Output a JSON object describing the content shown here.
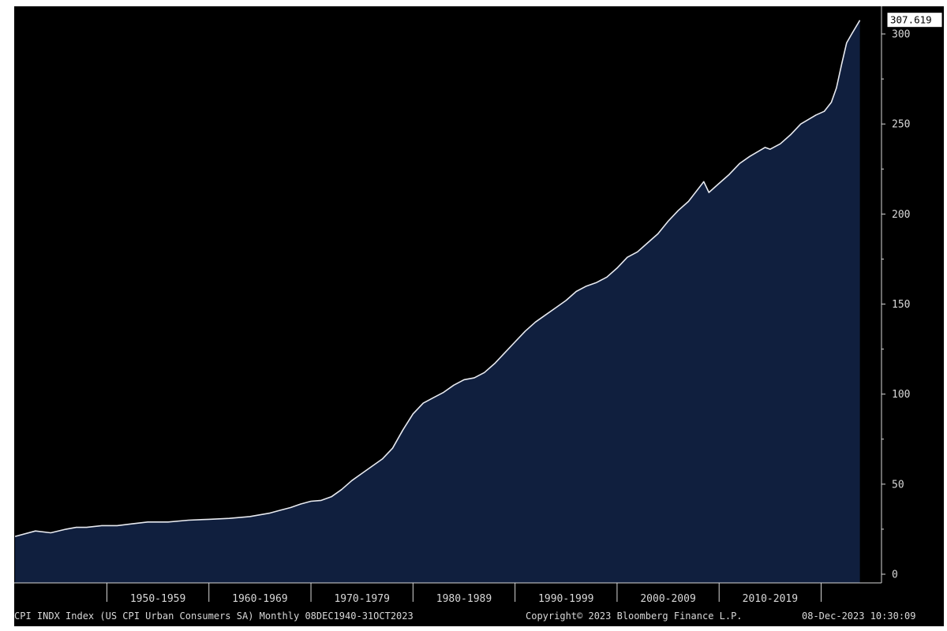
{
  "chart_data": {
    "type": "area",
    "x_range": [
      "1940-12",
      "2023-10"
    ],
    "ylim": [
      0,
      320
    ],
    "y_ticks": [
      0,
      50,
      100,
      150,
      200,
      250,
      300
    ],
    "y_tick_labels": [
      "0",
      "50",
      "100",
      "150",
      "200",
      "250",
      "300"
    ],
    "x_tick_labels": [
      "1950-1959",
      "1960-1969",
      "1970-1979",
      "1980-1989",
      "1990-1999",
      "2000-2009",
      "2010-2019"
    ],
    "last_value_label": "307.619",
    "grid": false,
    "series": [
      {
        "x": [
          1941.0,
          1943.0,
          1944.5,
          1946.0,
          1947.0,
          1948.0,
          1949.5,
          1951.0,
          1952.5,
          1954.0,
          1956.0,
          1958.0,
          1960.0,
          1962.0,
          1964.0,
          1965.0,
          1966.0,
          1967.0,
          1968.0,
          1969.0,
          1970.0,
          1971.0,
          1972.0,
          1973.0,
          1974.0,
          1975.0,
          1976.0,
          1977.0,
          1978.0,
          1979.0,
          1980.0,
          1981.0,
          1982.0,
          1983.0,
          1984.0,
          1985.0,
          1986.0,
          1987.0,
          1988.0,
          1989.0,
          1990.0,
          1991.0,
          1992.0,
          1993.0,
          1994.0,
          1995.0,
          1996.0,
          1997.0,
          1998.0,
          1999.0,
          2000.0,
          2001.0,
          2002.0,
          2003.0,
          2004.0,
          2005.0,
          2006.0,
          2007.0,
          2008.5,
          2009.0,
          2010.0,
          2011.0,
          2012.0,
          2013.0,
          2014.5,
          2015.0,
          2016.0,
          2017.0,
          2018.0,
          2019.5,
          2020.3,
          2021.0,
          2021.5,
          2022.0,
          2022.5,
          2023.0,
          2023.8
        ],
        "values": [
          21,
          24,
          23,
          25,
          26,
          26,
          27,
          27,
          28,
          29,
          29,
          30,
          30.5,
          31,
          32,
          33,
          34,
          35.5,
          37,
          39,
          40.5,
          41,
          43,
          47,
          52,
          56,
          60,
          64,
          70,
          80,
          89,
          95,
          98,
          101,
          105,
          108,
          109,
          112,
          117,
          123,
          129,
          135,
          140,
          144,
          148,
          152,
          157,
          160,
          162,
          165,
          170,
          176,
          179,
          184,
          189,
          196,
          202,
          207,
          218,
          212,
          217,
          222,
          228,
          232,
          237,
          236,
          239,
          244,
          250,
          255,
          257,
          262,
          270,
          283,
          295,
          300,
          307.6
        ]
      }
    ]
  },
  "footer": {
    "left": "CPI INDX Index (US CPI Urban Consumers SA)  Monthly 08DEC1940-31OCT2023",
    "center": "Copyright© 2023 Bloomberg Finance L.P.",
    "right": "08-Dec-2023 10:30:09"
  },
  "colors": {
    "background": "#000000",
    "area_fill": "#101f3e",
    "line": "#e8eaf0",
    "axis_text": "#d8d8d8"
  }
}
